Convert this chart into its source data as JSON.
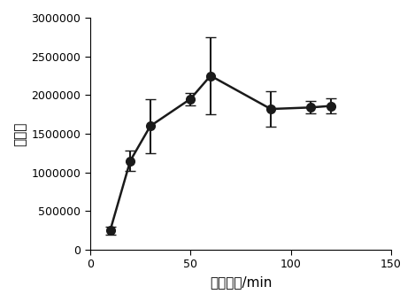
{
  "x": [
    10,
    20,
    30,
    50,
    60,
    90,
    110,
    120
  ],
  "y": [
    250000,
    1150000,
    1600000,
    1950000,
    2250000,
    1820000,
    1840000,
    1860000
  ],
  "yerr": [
    50000,
    130000,
    350000,
    80000,
    500000,
    230000,
    80000,
    100000
  ],
  "xlabel": "萍取时间/min",
  "ylabel": "峰面积",
  "xlim": [
    0,
    150
  ],
  "ylim": [
    0,
    3000000
  ],
  "xticks": [
    0,
    50,
    100,
    150
  ],
  "yticks": [
    0,
    500000,
    1000000,
    1500000,
    2000000,
    2500000,
    3000000
  ],
  "line_color": "#1a1a1a",
  "marker": "o",
  "markersize": 7,
  "linewidth": 1.8,
  "capsize": 4,
  "elinewidth": 1.5,
  "font_size_label": 11,
  "font_size_tick": 9
}
